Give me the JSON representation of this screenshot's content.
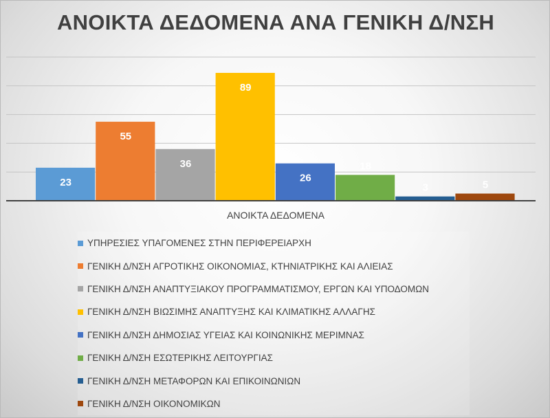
{
  "chart_data": {
    "type": "bar",
    "title": "ΑΝΟΙΚΤΑ ΔΕΔΟΜΕΝΑ ΑΝΑ ΓΕΝΙΚΗ Δ/ΝΣΗ",
    "categories": [
      "ΑΝΟΙΚΤΑ ΔΕΔΟΜΕΝΑ"
    ],
    "ylim": [
      0,
      100
    ],
    "grid": true,
    "legend_position": "bottom",
    "series": [
      {
        "name": "ΥΠΗΡΕΣΙΕΣ ΥΠΑΓΟΜΕΝΕΣ ΣΤΗΝ ΠΕΡΙΦΕΡΕΙΑΡΧΗ",
        "values": [
          23
        ],
        "color": "#5B9BD5"
      },
      {
        "name": "ΓΕΝΙΚΗ Δ/ΝΣΗ ΑΓΡΟΤΙΚΗΣ ΟΙΚΟΝΟΜΙΑΣ, ΚΤΗΝΙΑΤΡΙΚΗΣ ΚΑΙ ΑΛΙΕΙΑΣ",
        "values": [
          55
        ],
        "color": "#ED7D31"
      },
      {
        "name": "ΓΕΝΙΚΗ Δ/ΝΣΗ ΑΝΑΠΤΥΞΙΑΚΟΥ ΠΡΟΓΡΑΜΜΑΤΙΣΜΟΥ, ΕΡΓΩΝ ΚΑΙ ΥΠΟΔΟΜΩΝ",
        "values": [
          36
        ],
        "color": "#A5A5A5"
      },
      {
        "name": "ΓΕΝΙΚΗ Δ/ΝΣΗ ΒΙΩΣΙΜΗΣ ΑΝΑΠΤΥΞΗΣ ΚΑΙ ΚΛΙΜΑΤΙΚΗΣ ΑΛΛΑΓΗΣ",
        "values": [
          89
        ],
        "color": "#FFC000"
      },
      {
        "name": "ΓΕΝΙΚΗ Δ/ΝΣΗ ΔΗΜΟΣΙΑΣ ΥΓΕΙΑΣ ΚΑΙ ΚΟΙΝΩΝΙΚΗΣ ΜΕΡΙΜΝΑΣ",
        "values": [
          26
        ],
        "color": "#4472C4"
      },
      {
        "name": "ΓΕΝΙΚΗ Δ/ΝΣΗ ΕΣΩΤΕΡΙΚΗΣ ΛΕΙΤΟΥΡΓΙΑΣ",
        "values": [
          18
        ],
        "color": "#70AD47"
      },
      {
        "name": "ΓΕΝΙΚΗ Δ/ΝΣΗ ΜΕΤΑΦΟΡΩΝ ΚΑΙ ΕΠΙΚΟΙΝΩΝΙΩΝ",
        "values": [
          3
        ],
        "color": "#255E91"
      },
      {
        "name": "ΓΕΝΙΚΗ Δ/ΝΣΗ ΟΙΚΟΝΟΜΙΚΩΝ",
        "values": [
          5
        ],
        "color": "#9E480E"
      }
    ]
  }
}
